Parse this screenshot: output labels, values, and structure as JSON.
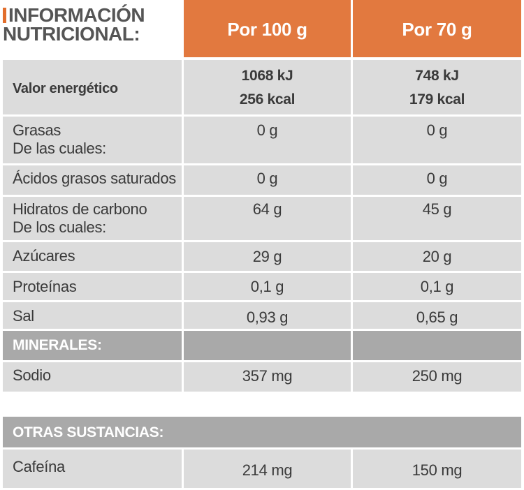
{
  "header": {
    "title_line1": "INFORMACIÓN",
    "title_line2": "NUTRICIONAL:",
    "col1": "Por 100 g",
    "col2": "Por 70 g"
  },
  "rows": [
    {
      "label": "Valor energético",
      "v1_a": "1068 kJ",
      "v1_b": "256 kcal",
      "v2_a": "748 kJ",
      "v2_b": "179 kcal"
    },
    {
      "label_a": "Grasas",
      "label_b": "De las cuales:",
      "v1": "0 g",
      "v2": "0 g"
    },
    {
      "label": "Ácidos grasos saturados",
      "v1": "0 g",
      "v2": "0 g"
    },
    {
      "label_a": "Hidratos de carbono",
      "label_b": "De los cuales:",
      "v1": "64 g",
      "v2": "45 g"
    },
    {
      "label": "Azúcares",
      "v1": "29 g",
      "v2": "20 g"
    },
    {
      "label": "Proteínas",
      "v1": "0,1 g",
      "v2": "0,1 g"
    },
    {
      "label": "Sal",
      "v1": "0,93 g",
      "v2": "0,65 g"
    }
  ],
  "minerals": {
    "section_label": "MINERALES:",
    "rows": [
      {
        "label": "Sodio",
        "v1": "357 mg",
        "v2": "250 mg"
      }
    ]
  },
  "other": {
    "section_label": "OTRAS SUSTANCIAS:",
    "rows": [
      {
        "label": "Cafeína",
        "v1": "214 mg",
        "v2": "150 mg"
      }
    ]
  },
  "colors": {
    "accent": "#e2793f",
    "cell_bg": "#dcdcdc",
    "section_bg": "#a9a9a9"
  }
}
